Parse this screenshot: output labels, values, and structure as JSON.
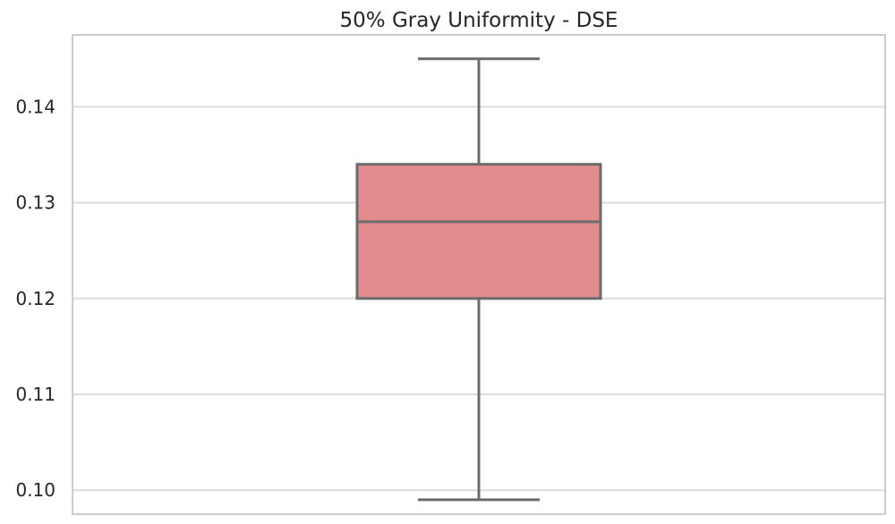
{
  "chart_data": {
    "type": "box",
    "title": "50% Gray Uniformity - DSE",
    "xlabel": "",
    "ylabel": "",
    "ylim": [
      0.0975,
      0.1475
    ],
    "yticks": [
      {
        "value": 0.1,
        "label": "0.10"
      },
      {
        "value": 0.11,
        "label": "0.11"
      },
      {
        "value": 0.12,
        "label": "0.12"
      },
      {
        "value": 0.13,
        "label": "0.13"
      },
      {
        "value": 0.14,
        "label": "0.14"
      }
    ],
    "grid": true,
    "box": {
      "whisker_low": 0.099,
      "q1": 0.12,
      "median": 0.128,
      "q3": 0.134,
      "whisker_high": 0.145
    },
    "colors": {
      "box_fill": "#e28c8d",
      "box_edge": "#6b6b6b",
      "grid": "#dcdcdc",
      "frame": "#cccccc",
      "text": "#262626"
    }
  }
}
